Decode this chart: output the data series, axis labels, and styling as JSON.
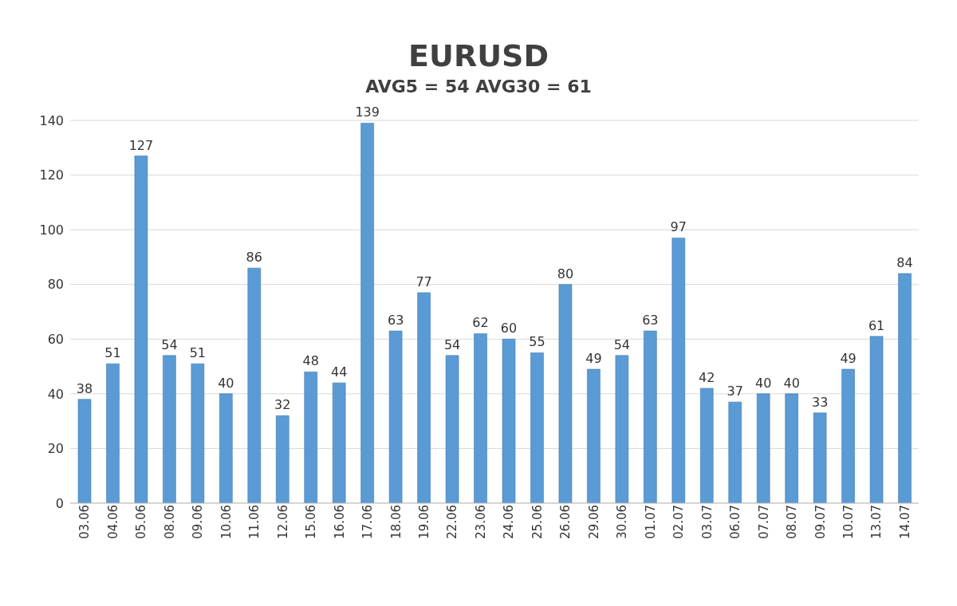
{
  "chart_data": {
    "type": "bar",
    "title": "EURUSD",
    "subtitle": "AVG5 = 54 AVG30 = 61",
    "categories": [
      "03.06",
      "04.06",
      "05.06",
      "08.06",
      "09.06",
      "10.06",
      "11.06",
      "12.06",
      "15.06",
      "16.06",
      "17.06",
      "18.06",
      "19.06",
      "22.06",
      "23.06",
      "24.06",
      "25.06",
      "26.06",
      "29.06",
      "30.06",
      "01.07",
      "02.07",
      "03.07",
      "06.07",
      "07.07",
      "08.07",
      "09.07",
      "10.07",
      "13.07",
      "14.07"
    ],
    "values": [
      38,
      51,
      127,
      54,
      51,
      40,
      86,
      32,
      48,
      44,
      139,
      63,
      77,
      54,
      62,
      60,
      55,
      80,
      49,
      54,
      63,
      97,
      42,
      37,
      40,
      40,
      33,
      49,
      61,
      84
    ],
    "color": "#5b9bd5",
    "ylim": [
      0,
      140
    ],
    "yticks": [
      0,
      20,
      40,
      60,
      80,
      100,
      120,
      140
    ],
    "grid": "y",
    "data_labels": true
  }
}
